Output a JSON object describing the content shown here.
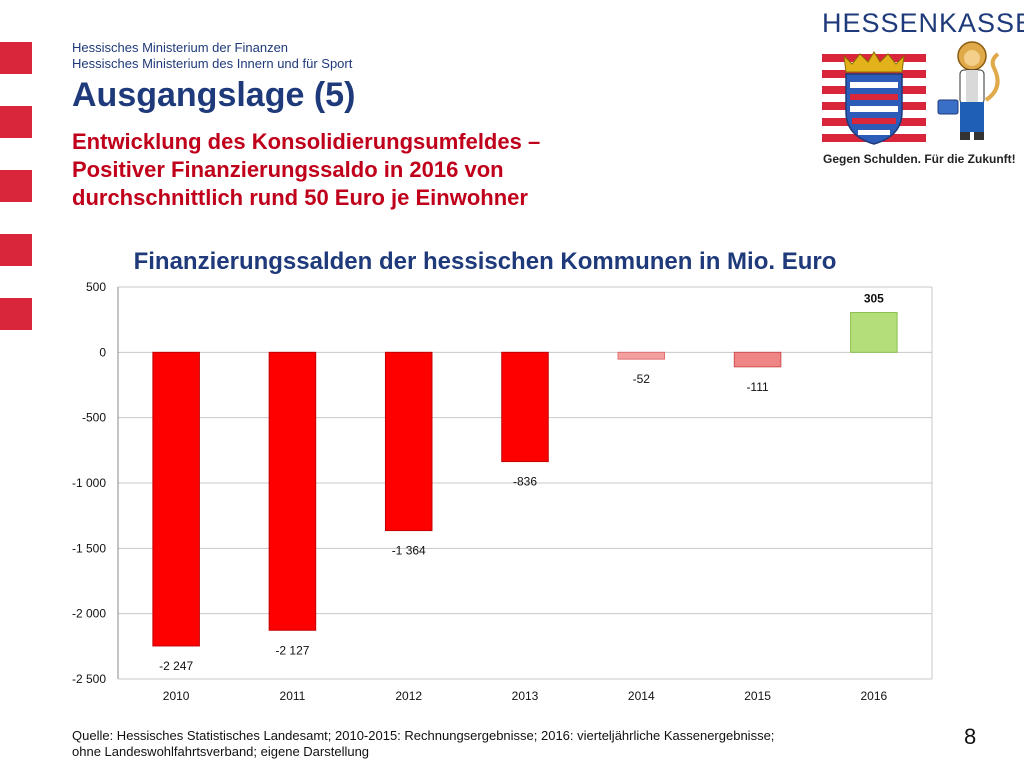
{
  "header": {
    "ministry_lines": [
      "Hessisches Ministerium der Finanzen",
      "Hessisches Ministerium des Innern und für Sport"
    ],
    "title": "Ausgangslage (5)",
    "subtitle_lines": [
      "Entwicklung des Konsolidierungsumfeldes –",
      "Positiver Finanzierungssaldo in 2016 von",
      "durchschnittlich rund 50 Euro je Einwohner"
    ]
  },
  "logo": {
    "name": "HESSENKASSE",
    "slogan": "Gegen Schulden. Für die Zukunft!",
    "icons": [
      "hessen-coat-of-arms-icon",
      "lion-mascot-icon"
    ],
    "brand_color": "#1f3a7a",
    "stripe_color": "#d9263a"
  },
  "chart_data": {
    "type": "bar",
    "title": "Finanzierungssalden der hessischen Kommunen in Mio. Euro",
    "categories": [
      "2010",
      "2011",
      "2012",
      "2013",
      "2014",
      "2015",
      "2016"
    ],
    "values": [
      -2247,
      -2127,
      -1364,
      -836,
      -52,
      -111,
      305
    ],
    "data_labels": [
      "-2 247",
      "-2 127",
      "-1 364",
      "-836",
      "-52",
      "-111",
      "305"
    ],
    "ylim": [
      -2500,
      500
    ],
    "yticks": [
      500,
      0,
      -500,
      -1000,
      -1500,
      -2000,
      -2500
    ],
    "ytick_labels": [
      "500",
      "0",
      "-500",
      "-1 000",
      "-1 500",
      "-2 000",
      "-2 500"
    ],
    "grid": true,
    "bar_colors": [
      "#ff0000",
      "#ff0000",
      "#ff0000",
      "#ff0000",
      "#f4a0a0",
      "#f08585",
      "#b3de7a"
    ],
    "bar_borders": [
      "#c00000",
      "#c00000",
      "#c00000",
      "#c00000",
      "#e07070",
      "#d05050",
      "#8cc04f"
    ]
  },
  "footer": {
    "source_lines": [
      "Quelle: Hessisches Statistisches Landesamt; 2010-2015: Rechnungsergebnisse; 2016: vierteljährliche Kassenergebnisse;",
      "ohne Landeswohlfahrtsverband; eigene Darstellung"
    ],
    "page_number": "8"
  }
}
